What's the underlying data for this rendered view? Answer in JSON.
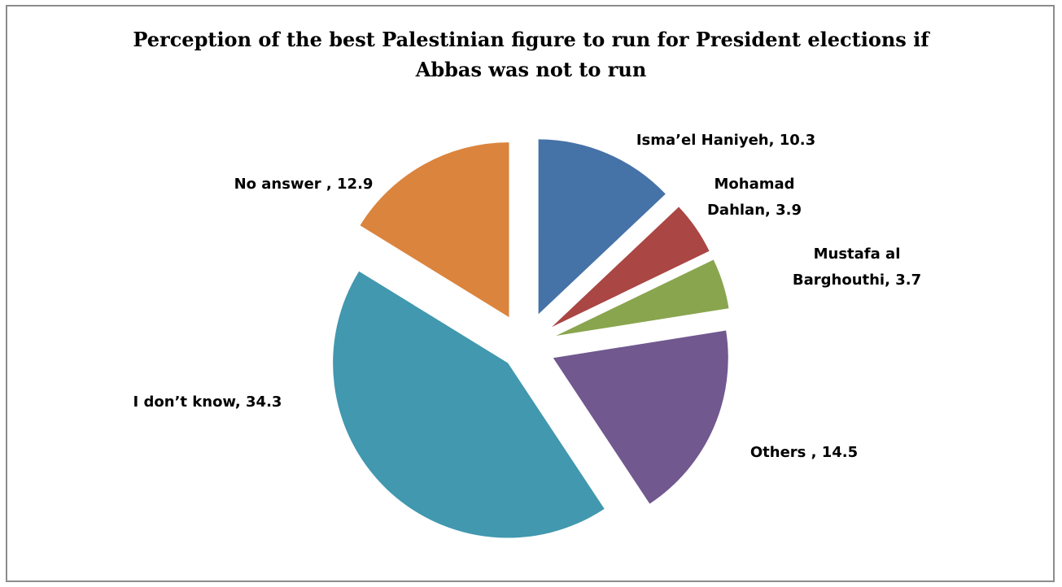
{
  "chart_data": {
    "type": "pie",
    "title_lines": [
      "Perception of  the best Palestinian figure to run for President elections if",
      "Abbas was not to run"
    ],
    "slices": [
      {
        "label": "Isma’el Haniyeh",
        "value": 10.3,
        "label_lines": [
          "Isma’el Haniyeh, 10.3"
        ],
        "color": "#4572A7"
      },
      {
        "label": "Mohamad Dahlan",
        "value": 3.9,
        "label_lines": [
          "Mohamad",
          "Dahlan, 3.9"
        ],
        "color": "#AA4643"
      },
      {
        "label": "Mustafa al Barghouthi",
        "value": 3.7,
        "label_lines": [
          "Mustafa al",
          "Barghouthi, 3.7"
        ],
        "color": "#89A54E"
      },
      {
        "label": "Others",
        "value": 14.5,
        "label_lines": [
          "Others , 14.5"
        ],
        "color": "#71588F"
      },
      {
        "label": "I don’t know",
        "value": 34.3,
        "label_lines": [
          "I don’t know, 34.3"
        ],
        "color": "#4198AF"
      },
      {
        "label": "No answer",
        "value": 12.9,
        "label_lines": [
          "No answer , 12.9"
        ],
        "color": "#DB843D"
      }
    ],
    "legend": "none",
    "exploded": true
  }
}
